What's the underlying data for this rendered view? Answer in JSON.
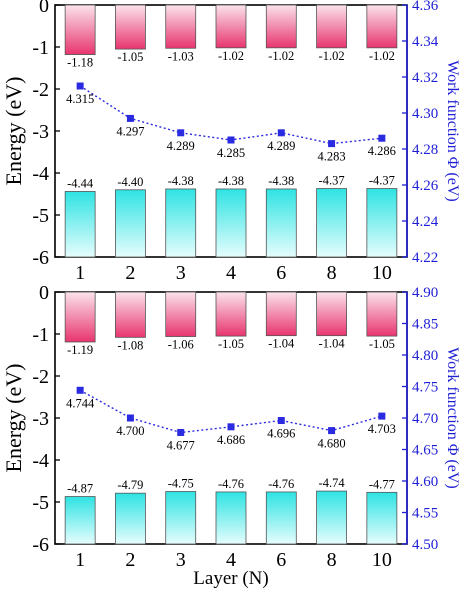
{
  "colors": {
    "axis_right": "#1f1fd6",
    "series_line": "#2a2ae0",
    "top_bar_dark": "#e8356f",
    "top_bar_light": "#fbe3ec",
    "bottom_bar_dark": "#2fe3e3",
    "bottom_bar_light": "#e6fdfd"
  },
  "chart_data": [
    {
      "type": "bar",
      "categories": [
        "1",
        "2",
        "3",
        "4",
        "6",
        "8",
        "10"
      ],
      "ylabel": "Energy (eV)",
      "ylabel_right": "Work function Φ (eV)",
      "ylim": [
        -6,
        0
      ],
      "yticks": [
        "0",
        "-1",
        "-2",
        "-3",
        "-4",
        "-5",
        "-6"
      ],
      "ylim_right": [
        4.22,
        4.36
      ],
      "yticks_right": [
        "4.36",
        "4.34",
        "4.32",
        "4.30",
        "4.28",
        "4.26",
        "4.24",
        "4.22"
      ],
      "series": [
        {
          "values": [
            -1.18,
            -1.05,
            -1.03,
            -1.02,
            -1.02,
            -1.02,
            -1.02
          ],
          "labels": [
            "-1.18",
            "-1.05",
            "-1.03",
            "-1.02",
            "-1.02",
            "-1.02",
            "-1.02"
          ]
        },
        {
          "values": [
            -4.44,
            -4.4,
            -4.38,
            -4.38,
            -4.38,
            -4.37,
            -4.37
          ],
          "labels": [
            "-4.44",
            "-4.40",
            "-4.38",
            "-4.38",
            "-4.38",
            "-4.37",
            "-4.37"
          ]
        }
      ],
      "work_function": {
        "values": [
          4.315,
          4.297,
          4.289,
          4.285,
          4.289,
          4.283,
          4.286
        ],
        "labels": [
          "4.315",
          "4.297",
          "4.289",
          "4.285",
          "4.289",
          "4.283",
          "4.286"
        ]
      }
    },
    {
      "type": "bar",
      "categories": [
        "1",
        "2",
        "3",
        "4",
        "6",
        "8",
        "10"
      ],
      "xlabel": "Layer (N)",
      "ylabel": "Energy (eV)",
      "ylabel_right": "Work function Φ (eV)",
      "ylim": [
        -6,
        0
      ],
      "yticks": [
        "0",
        "-1",
        "-2",
        "-3",
        "-4",
        "-5",
        "-6"
      ],
      "ylim_right": [
        4.5,
        4.9
      ],
      "yticks_right": [
        "4.90",
        "4.85",
        "4.80",
        "4.75",
        "4.70",
        "4.65",
        "4.60",
        "4.55",
        "4.50"
      ],
      "series": [
        {
          "values": [
            -1.19,
            -1.08,
            -1.06,
            -1.05,
            -1.04,
            -1.04,
            -1.05
          ],
          "labels": [
            "-1.19",
            "-1.08",
            "-1.06",
            "-1.05",
            "-1.04",
            "-1.04",
            "-1.05"
          ]
        },
        {
          "values": [
            -4.87,
            -4.79,
            -4.75,
            -4.76,
            -4.76,
            -4.74,
            -4.77
          ],
          "labels": [
            "-4.87",
            "-4.79",
            "-4.75",
            "-4.76",
            "-4.76",
            "-4.74",
            "-4.77"
          ]
        }
      ],
      "work_function": {
        "values": [
          4.744,
          4.7,
          4.677,
          4.686,
          4.696,
          4.68,
          4.703
        ],
        "labels": [
          "4.744",
          "4.700",
          "4.677",
          "4.686",
          "4.696",
          "4.680",
          "4.703"
        ]
      }
    }
  ]
}
